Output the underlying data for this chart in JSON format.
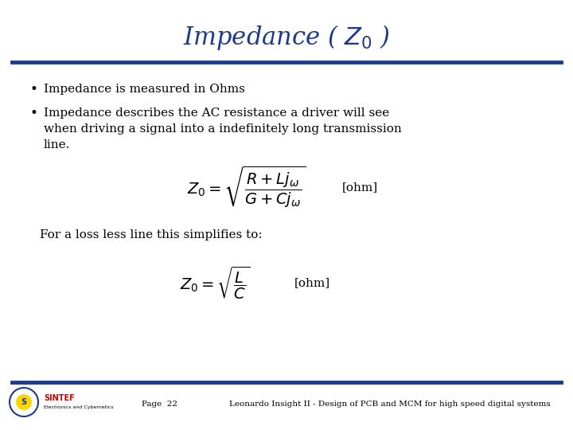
{
  "title": "Impedance ( $Z_0$ )",
  "title_color": "#1E3A8A",
  "title_fontsize": 22,
  "bg_color": "#FFFFFF",
  "line_color": "#1E3A8A",
  "bullet1": "Impedance is measured in Ohms",
  "bullet2_line1": "Impedance describes the AC resistance a driver will see",
  "bullet2_line2": "when driving a signal into a indefinitely long transmission",
  "bullet2_line3": "line.",
  "formula1": "$Z_0 = \\sqrt{\\dfrac{R + Lj_{\\omega}}{G + Cj_{\\omega}}}$",
  "formula1_ohm": "[ohm]",
  "lossless_text": "For a loss less line this simplifies to:",
  "formula2": "$Z_0 = \\sqrt{\\dfrac{L}{C}}$",
  "formula2_ohm": "[ohm]",
  "footer_page": "Page  22",
  "footer_text": "Leonardo Insight II - Design of PCB and MCM for high speed digital systems",
  "text_color": "#000000",
  "body_fontsize": 11,
  "formula_fontsize": 14,
  "footer_fontsize": 7.5
}
